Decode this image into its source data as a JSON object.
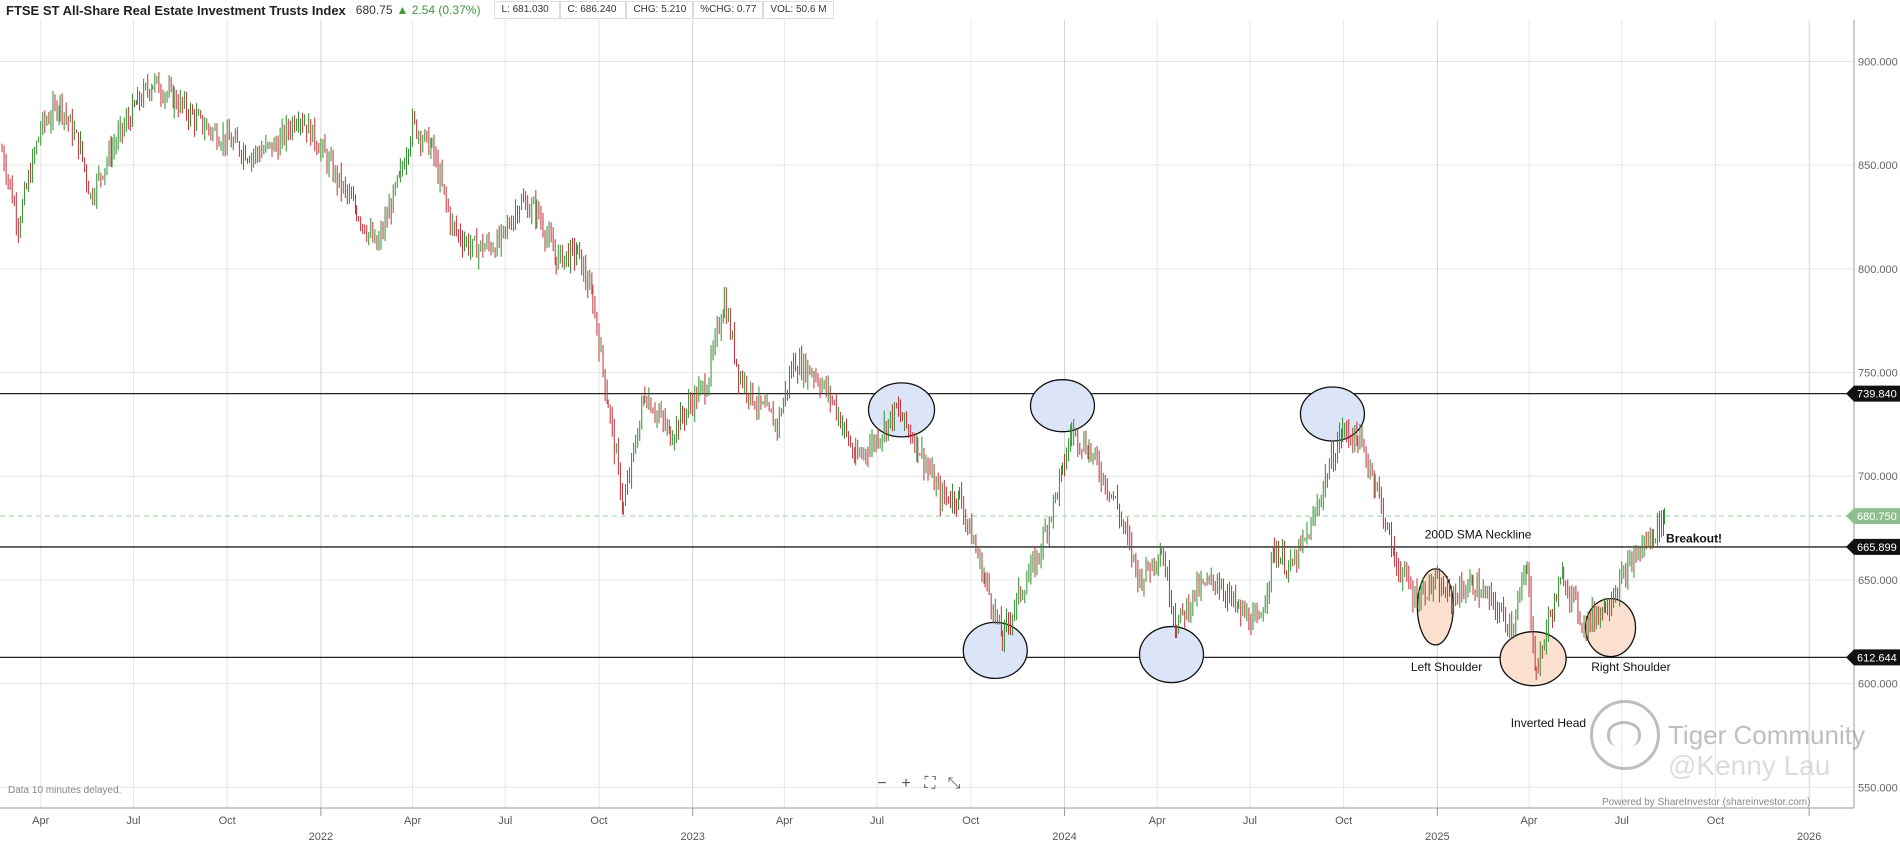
{
  "header": {
    "title": "FTSE ST All-Share Real Estate Investment Trusts Index",
    "last": "680.75",
    "arrow": "▲",
    "change": "2.54 (0.37%)",
    "low": "L: 681.030",
    "close": "C: 686.240",
    "chg": "CHG: 5.210",
    "pchg": "%CHG: 0.77",
    "vol": "VOL: 50.6 M"
  },
  "footer": {
    "delay_note": "Data 10 minutes delayed.",
    "powered": "Powered by ShareInvestor (shareinvestor.com)"
  },
  "watermark": {
    "brand": "Tiger Community",
    "handle": "@Kenny Lau"
  },
  "zoom_controls": {
    "minus": "−",
    "plus": "+",
    "fit": "⛶",
    "expand": "⤡"
  },
  "colors": {
    "up": "#2f8f2f",
    "down": "#c0303a",
    "ellipse_blue": "#dce5f7",
    "ellipse_orange": "#fbe0cf",
    "last_label": "#8fbf8f"
  },
  "chart_data": {
    "type": "line",
    "ylim": [
      540,
      920
    ],
    "y_ticks": [
      "900.000",
      "850.000",
      "800.000",
      "750.000",
      "700.000",
      "650.000",
      "600.000",
      "550.000"
    ],
    "x_month_ticks": [
      {
        "label": "Apr",
        "date": "2021-04-01"
      },
      {
        "label": "Jul",
        "date": "2021-07-01"
      },
      {
        "label": "Oct",
        "date": "2021-10-01"
      },
      {
        "label": "Apr",
        "date": "2022-04-01"
      },
      {
        "label": "Jul",
        "date": "2022-07-01"
      },
      {
        "label": "Oct",
        "date": "2022-10-01"
      },
      {
        "label": "Apr",
        "date": "2023-04-01"
      },
      {
        "label": "Jul",
        "date": "2023-07-01"
      },
      {
        "label": "Oct",
        "date": "2023-10-01"
      },
      {
        "label": "Apr",
        "date": "2024-04-01"
      },
      {
        "label": "Jul",
        "date": "2024-07-01"
      },
      {
        "label": "Oct",
        "date": "2024-10-01"
      },
      {
        "label": "Apr",
        "date": "2025-04-01"
      },
      {
        "label": "Jul",
        "date": "2025-07-01"
      },
      {
        "label": "Oct",
        "date": "2025-10-01"
      }
    ],
    "x_year_ticks": [
      {
        "label": "2022",
        "date": "2022-01-01"
      },
      {
        "label": "2023",
        "date": "2023-01-01"
      },
      {
        "label": "2024",
        "date": "2024-01-01"
      },
      {
        "label": "2025",
        "date": "2025-01-01"
      },
      {
        "label": "2026",
        "date": "2026-01-01"
      }
    ],
    "series": [
      {
        "points": [
          [
            "2021-02-22",
            857
          ],
          [
            "2021-03-10",
            822
          ],
          [
            "2021-04-01",
            868
          ],
          [
            "2021-04-20",
            880
          ],
          [
            "2021-05-10",
            858
          ],
          [
            "2021-05-20",
            835
          ],
          [
            "2021-06-10",
            858
          ],
          [
            "2021-07-05",
            880
          ],
          [
            "2021-07-20",
            890
          ],
          [
            "2021-08-10",
            882
          ],
          [
            "2021-09-05",
            870
          ],
          [
            "2021-10-01",
            862
          ],
          [
            "2021-10-25",
            855
          ],
          [
            "2021-11-20",
            860
          ],
          [
            "2021-12-10",
            875
          ],
          [
            "2021-12-30",
            860
          ],
          [
            "2022-01-15",
            845
          ],
          [
            "2022-02-05",
            828
          ],
          [
            "2022-02-25",
            810
          ],
          [
            "2022-03-20",
            845
          ],
          [
            "2022-04-01",
            870
          ],
          [
            "2022-04-20",
            858
          ],
          [
            "2022-05-10",
            820
          ],
          [
            "2022-05-30",
            810
          ],
          [
            "2022-06-25",
            812
          ],
          [
            "2022-07-15",
            832
          ],
          [
            "2022-08-01",
            828
          ],
          [
            "2022-08-20",
            805
          ],
          [
            "2022-09-10",
            808
          ],
          [
            "2022-09-25",
            785
          ],
          [
            "2022-10-10",
            735
          ],
          [
            "2022-10-25",
            685
          ],
          [
            "2022-11-15",
            740
          ],
          [
            "2022-12-10",
            720
          ],
          [
            "2022-12-30",
            735
          ],
          [
            "2023-01-15",
            745
          ],
          [
            "2023-02-01",
            785
          ],
          [
            "2023-02-15",
            750
          ],
          [
            "2023-03-05",
            735
          ],
          [
            "2023-03-25",
            725
          ],
          [
            "2023-04-10",
            755
          ],
          [
            "2023-04-30",
            750
          ],
          [
            "2023-05-20",
            735
          ],
          [
            "2023-06-10",
            708
          ],
          [
            "2023-06-30",
            718
          ],
          [
            "2023-07-20",
            732
          ],
          [
            "2023-08-10",
            715
          ],
          [
            "2023-09-01",
            690
          ],
          [
            "2023-09-20",
            690
          ],
          [
            "2023-10-15",
            650
          ],
          [
            "2023-11-01",
            622
          ],
          [
            "2023-11-15",
            640
          ],
          [
            "2023-12-05",
            660
          ],
          [
            "2023-12-30",
            702
          ],
          [
            "2024-01-08",
            722
          ],
          [
            "2024-01-25",
            713
          ],
          [
            "2024-02-20",
            688
          ],
          [
            "2024-03-15",
            650
          ],
          [
            "2024-04-05",
            665
          ],
          [
            "2024-04-20",
            628
          ],
          [
            "2024-05-10",
            645
          ],
          [
            "2024-05-30",
            650
          ],
          [
            "2024-06-20",
            635
          ],
          [
            "2024-07-10",
            628
          ],
          [
            "2024-07-25",
            665
          ],
          [
            "2024-08-10",
            655
          ],
          [
            "2024-08-30",
            675
          ],
          [
            "2024-09-15",
            702
          ],
          [
            "2024-09-30",
            722
          ],
          [
            "2024-10-15",
            718
          ],
          [
            "2024-11-01",
            698
          ],
          [
            "2024-11-20",
            660
          ],
          [
            "2024-12-10",
            642
          ],
          [
            "2024-12-28",
            648
          ],
          [
            "2025-01-15",
            642
          ],
          [
            "2025-02-05",
            648
          ],
          [
            "2025-02-25",
            638
          ],
          [
            "2025-03-15",
            628
          ],
          [
            "2025-03-30",
            655
          ],
          [
            "2025-04-08",
            605
          ],
          [
            "2025-04-20",
            630
          ],
          [
            "2025-05-05",
            652
          ],
          [
            "2025-05-25",
            628
          ],
          [
            "2025-06-15",
            638
          ],
          [
            "2025-07-01",
            650
          ],
          [
            "2025-07-15",
            662
          ],
          [
            "2025-08-01",
            672
          ],
          [
            "2025-08-12",
            680.75
          ]
        ]
      }
    ],
    "hlines": [
      {
        "value": 739.84,
        "label": "739.840",
        "style": "solid"
      },
      {
        "value": 665.899,
        "label": "665.899",
        "style": "solid"
      },
      {
        "value": 612.644,
        "label": "612.644",
        "style": "solid"
      },
      {
        "value": 680.75,
        "label": "680.750",
        "style": "dashed"
      }
    ],
    "annotations": [
      {
        "text": "200D SMA Neckline",
        "date": "2025-02-10",
        "value": 670
      },
      {
        "text": "Breakout!",
        "date": "2025-09-10",
        "value": 668,
        "bold": true
      },
      {
        "text": "Left Shoulder",
        "date": "2025-01-10",
        "value": 606
      },
      {
        "text": "Right Shoulder",
        "date": "2025-07-10",
        "value": 606
      },
      {
        "text": "Inverted Head",
        "date": "2025-04-20",
        "value": 579
      }
    ],
    "ellipses": [
      {
        "date": "2023-07-25",
        "value": 732,
        "rx": 33,
        "ry": 27,
        "color": "blue"
      },
      {
        "date": "2023-12-30",
        "value": 734,
        "rx": 32,
        "ry": 26,
        "color": "blue"
      },
      {
        "date": "2024-09-20",
        "value": 730,
        "rx": 32,
        "ry": 27,
        "color": "blue"
      },
      {
        "date": "2023-10-25",
        "value": 616,
        "rx": 32,
        "ry": 28,
        "color": "blue"
      },
      {
        "date": "2024-04-15",
        "value": 614,
        "rx": 32,
        "ry": 28,
        "color": "blue"
      },
      {
        "date": "2024-12-30",
        "value": 637,
        "rx": 18,
        "ry": 38,
        "color": "orange"
      },
      {
        "date": "2025-04-05",
        "value": 612,
        "rx": 33,
        "ry": 27,
        "color": "orange"
      },
      {
        "date": "2025-06-20",
        "value": 627,
        "rx": 25,
        "ry": 29,
        "color": "orange"
      }
    ],
    "grid": true
  }
}
